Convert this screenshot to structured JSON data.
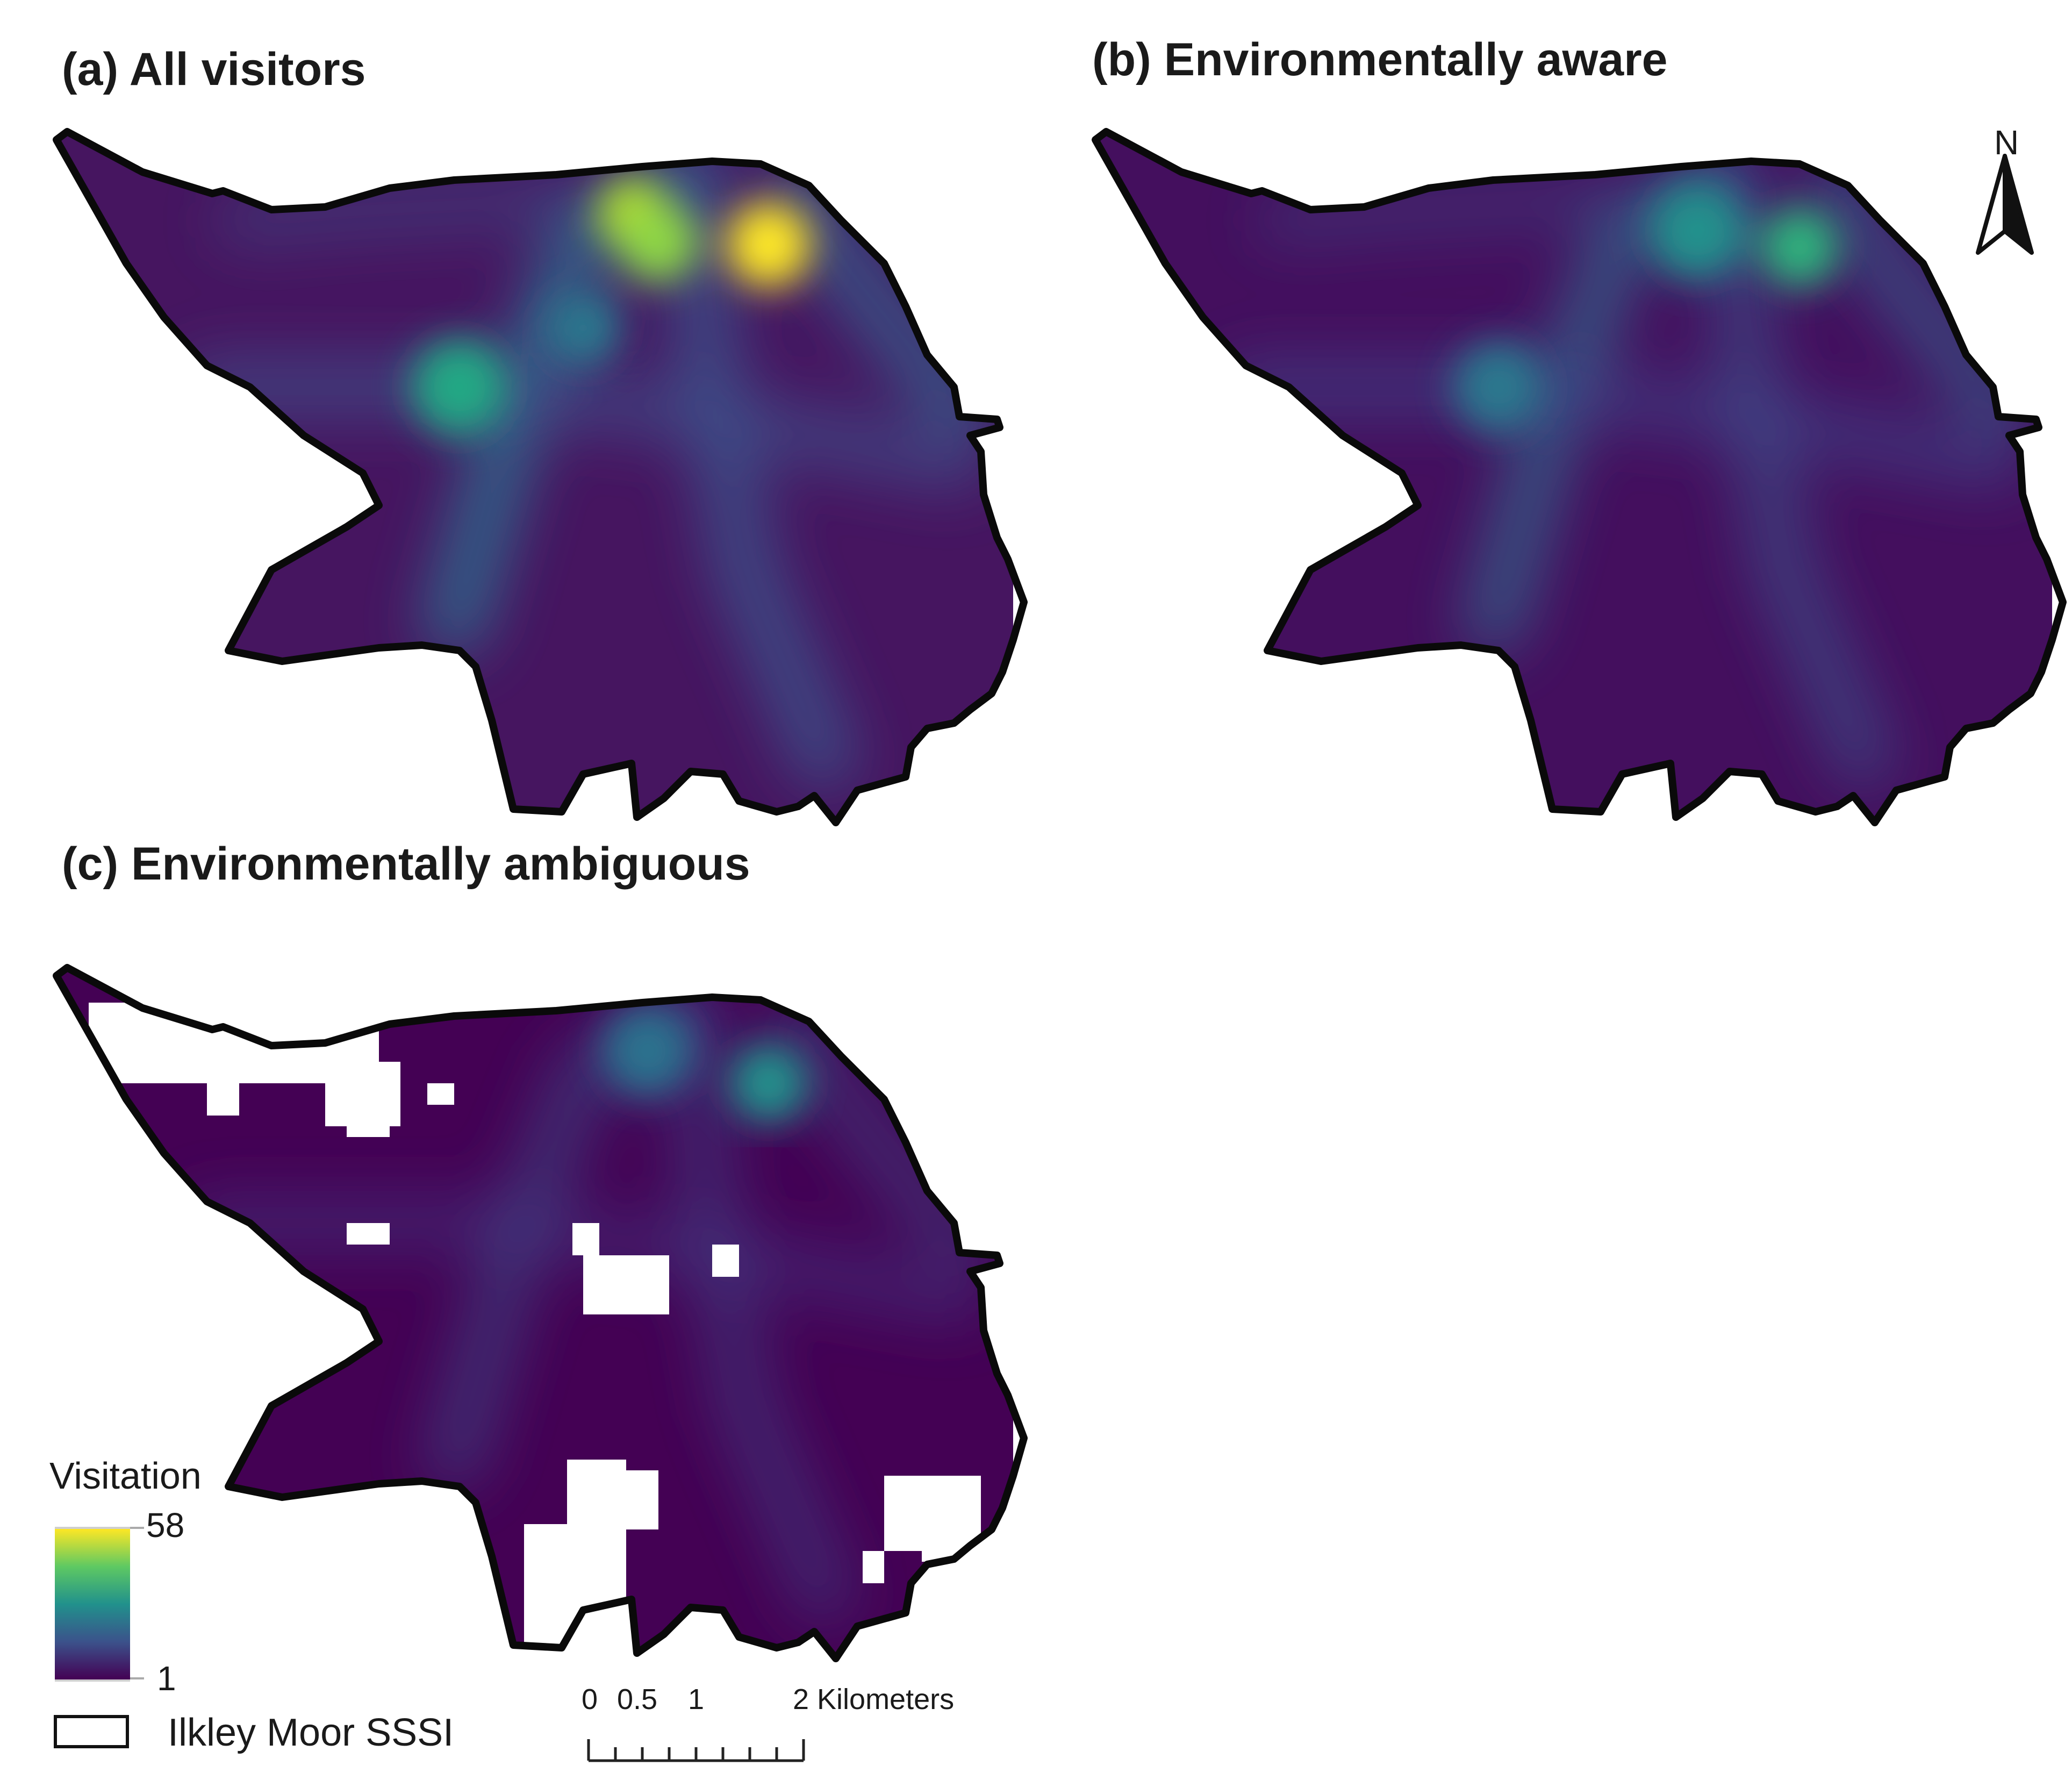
{
  "panels": [
    {
      "id": "a",
      "title": "(a) All visitors"
    },
    {
      "id": "b",
      "title": "(b) Environmentally aware"
    },
    {
      "id": "c",
      "title": "(c) Environmentally ambiguous"
    }
  ],
  "north_arrow": {
    "label": "N"
  },
  "legend": {
    "title": "Visitation",
    "max": "58",
    "min": "1",
    "colors": [
      "#fde725",
      "#5ec962",
      "#21918c",
      "#3b528b",
      "#440154"
    ],
    "boundary_label": "Ilkley Moor SSSI"
  },
  "scale_bar": {
    "labels": [
      "0",
      "0.5",
      "1",
      "2 Kilometers"
    ]
  }
}
